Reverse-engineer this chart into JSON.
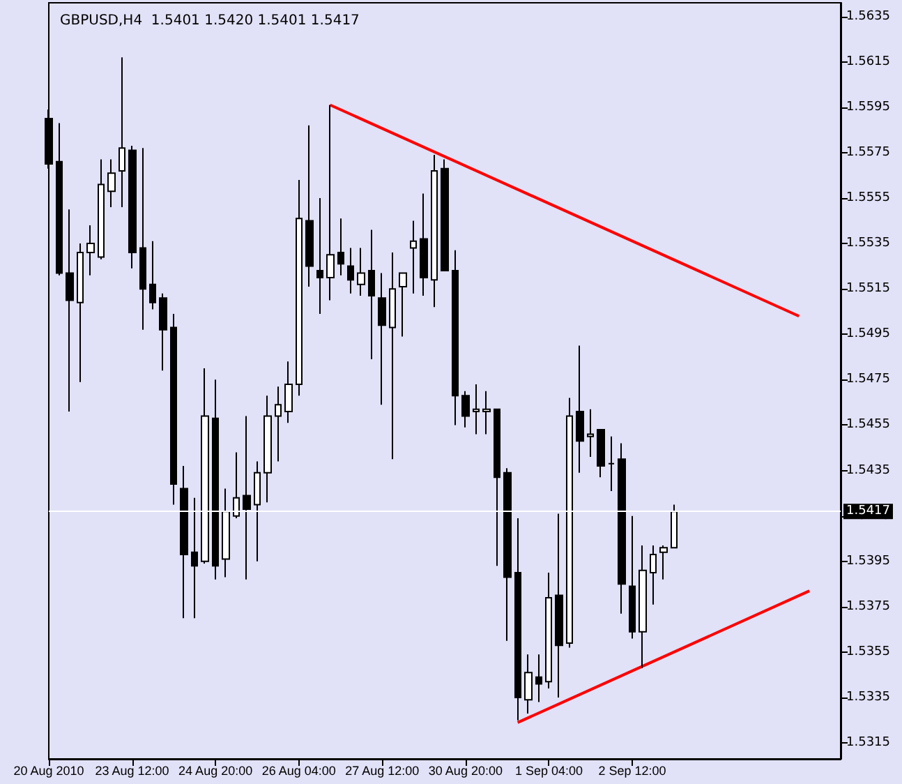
{
  "chart_data": {
    "type": "candlestick",
    "title": "GBPUSD,H4  1.5401 1.5420 1.5401 1.5417",
    "categories": [
      "20 Aug 2010",
      null,
      null,
      null,
      null,
      null,
      null,
      null,
      "23 Aug 12:00",
      null,
      null,
      null,
      null,
      null,
      null,
      null,
      "24 Aug 20:00",
      null,
      null,
      null,
      null,
      null,
      null,
      null,
      "26 Aug 04:00",
      null,
      null,
      null,
      null,
      null,
      null,
      null,
      "27 Aug 12:00",
      null,
      null,
      null,
      null,
      null,
      null,
      null,
      "30 Aug 20:00",
      null,
      null,
      null,
      null,
      null,
      null,
      null,
      "1 Sep 04:00",
      null,
      null,
      null,
      null,
      null,
      null,
      null,
      "2 Sep 12:00",
      null,
      null,
      null,
      null,
      null,
      null,
      null,
      null,
      null,
      null,
      null,
      null,
      null,
      null,
      null,
      null,
      null,
      null,
      null,
      null
    ],
    "series": [
      {
        "color": "#000000",
        "ohlc": [
          [
            1.559,
            1.5594,
            1.5568,
            1.557
          ],
          [
            1.5571,
            1.5588,
            1.5521,
            1.5522
          ],
          [
            1.5522,
            1.555,
            1.5461,
            1.551
          ],
          [
            1.5509,
            1.5535,
            1.5474,
            1.5531
          ],
          [
            1.5531,
            1.5543,
            1.5521,
            1.5535
          ],
          [
            1.5529,
            1.5572,
            1.5528,
            1.5561
          ],
          [
            1.5558,
            1.5572,
            1.5551,
            1.5566
          ],
          [
            1.5567,
            1.5617,
            1.5551,
            1.5577
          ],
          [
            1.5576,
            1.5578,
            1.5524,
            1.5531
          ],
          [
            1.5533,
            1.5577,
            1.5497,
            1.5515
          ],
          [
            1.5517,
            1.5536,
            1.5506,
            1.5509
          ],
          [
            1.5511,
            1.5513,
            1.5479,
            1.5497
          ],
          [
            1.5498,
            1.5504,
            1.542,
            1.5429
          ],
          [
            1.5427,
            1.5437,
            1.537,
            1.5398
          ],
          [
            1.5399,
            1.5423,
            1.537,
            1.5393
          ],
          [
            1.5395,
            1.548,
            1.5394,
            1.5459
          ],
          [
            1.5458,
            1.5475,
            1.5387,
            1.5393
          ],
          [
            1.5396,
            1.5427,
            1.5388,
            1.5417
          ],
          [
            1.5415,
            1.5443,
            1.5414,
            1.5423
          ],
          [
            1.5424,
            1.5459,
            1.5387,
            1.5418
          ],
          [
            1.542,
            1.5439,
            1.5395,
            1.5434
          ],
          [
            1.5434,
            1.5468,
            1.5421,
            1.5459
          ],
          [
            1.5459,
            1.5472,
            1.5439,
            1.5464
          ],
          [
            1.5461,
            1.5483,
            1.5456,
            1.5473
          ],
          [
            1.5473,
            1.5563,
            1.5468,
            1.5546
          ],
          [
            1.5545,
            1.5587,
            1.5516,
            1.5525
          ],
          [
            1.5523,
            1.5555,
            1.5504,
            1.552
          ],
          [
            1.552,
            1.5596,
            1.551,
            1.553
          ],
          [
            1.5531,
            1.5546,
            1.5521,
            1.5526
          ],
          [
            1.5525,
            1.5533,
            1.5513,
            1.5519
          ],
          [
            1.5517,
            1.5533,
            1.5512,
            1.5522
          ],
          [
            1.5523,
            1.5541,
            1.5484,
            1.5512
          ],
          [
            1.5511,
            1.5522,
            1.5464,
            1.5499
          ],
          [
            1.5498,
            1.5531,
            1.544,
            1.5515
          ],
          [
            1.5516,
            1.5522,
            1.5494,
            1.5522
          ],
          [
            1.5533,
            1.5545,
            1.5513,
            1.5536
          ],
          [
            1.5537,
            1.5557,
            1.5512,
            1.552
          ],
          [
            1.5519,
            1.5574,
            1.5507,
            1.5567
          ],
          [
            1.5568,
            1.5572,
            1.5523,
            1.5523
          ],
          [
            1.5523,
            1.5532,
            1.5455,
            1.5468
          ],
          [
            1.5468,
            1.547,
            1.5454,
            1.5459
          ],
          [
            1.5461,
            1.5473,
            1.5451,
            1.5462
          ],
          [
            1.5461,
            1.547,
            1.5451,
            1.5462
          ],
          [
            1.5462,
            1.5462,
            1.5393,
            1.5432
          ],
          [
            1.5434,
            1.5436,
            1.536,
            1.5388
          ],
          [
            1.539,
            1.5414,
            1.5325,
            1.5335
          ],
          [
            1.5334,
            1.5354,
            1.5328,
            1.5346
          ],
          [
            1.5344,
            1.5354,
            1.5333,
            1.5341
          ],
          [
            1.5342,
            1.539,
            1.5339,
            1.5379
          ],
          [
            1.538,
            1.5416,
            1.5335,
            1.5358
          ],
          [
            1.5359,
            1.5467,
            1.5357,
            1.5459
          ],
          [
            1.5461,
            1.549,
            1.5434,
            1.5448
          ],
          [
            1.545,
            1.5462,
            1.5441,
            1.5451
          ],
          [
            1.5453,
            1.5453,
            1.5432,
            1.5437
          ],
          [
            1.5438,
            1.545,
            1.5426,
            1.5438
          ],
          [
            1.544,
            1.5447,
            1.5372,
            1.5385
          ],
          [
            1.5384,
            1.5415,
            1.5361,
            1.5364
          ],
          [
            1.5364,
            1.5402,
            1.5348,
            1.5391
          ],
          [
            1.539,
            1.5402,
            1.5376,
            1.5398
          ],
          [
            1.5399,
            1.5402,
            1.5387,
            1.5401
          ],
          [
            1.5401,
            1.542,
            1.5401,
            1.5417
          ],
          null,
          null,
          null,
          null,
          null,
          null,
          null,
          null,
          null,
          null,
          null,
          null,
          null,
          null,
          null,
          null
        ]
      },
      {
        "type": "line",
        "color": "#ff0000",
        "values": [
          null,
          null,
          null,
          null,
          null,
          null,
          null,
          null,
          null,
          null,
          null,
          null,
          null,
          null,
          null,
          null,
          null,
          null,
          null,
          null,
          null,
          null,
          null,
          null,
          null,
          null,
          null,
          1.5596,
          null,
          null,
          null,
          null,
          null,
          null,
          null,
          null,
          null,
          null,
          null,
          null,
          null,
          null,
          null,
          null,
          null,
          null,
          null,
          null,
          null,
          null,
          null,
          null,
          null,
          null,
          null,
          null,
          null,
          null,
          null,
          null,
          null,
          null,
          null,
          null,
          null,
          null,
          null,
          null,
          null,
          null,
          null,
          null,
          1.5503,
          null,
          null,
          null,
          null
        ]
      },
      {
        "type": "line",
        "color": "#ff0000",
        "values": [
          null,
          null,
          null,
          null,
          null,
          null,
          null,
          null,
          null,
          null,
          null,
          null,
          null,
          null,
          null,
          null,
          null,
          null,
          null,
          null,
          null,
          null,
          null,
          null,
          null,
          null,
          null,
          null,
          null,
          null,
          null,
          null,
          null,
          null,
          null,
          null,
          null,
          null,
          null,
          null,
          null,
          null,
          null,
          null,
          null,
          1.5324,
          null,
          null,
          null,
          null,
          null,
          null,
          null,
          null,
          null,
          null,
          null,
          null,
          null,
          null,
          null,
          null,
          null,
          null,
          null,
          null,
          null,
          null,
          null,
          null,
          null,
          null,
          null,
          1.5382,
          null,
          null,
          null
        ]
      }
    ],
    "ylim": [
      1.5308,
      1.5641
    ],
    "yticks": [
      1.5315,
      1.5335,
      1.5355,
      1.5375,
      1.5395,
      1.5415,
      1.5435,
      1.5455,
      1.5475,
      1.5495,
      1.5515,
      1.5535,
      1.5555,
      1.5575,
      1.5595,
      1.5615,
      1.5635
    ],
    "ref_lines": [
      {
        "axis": "y",
        "value": 1.5417,
        "label": "1.5417",
        "color": "#ffffff"
      }
    ],
    "grid": false
  }
}
